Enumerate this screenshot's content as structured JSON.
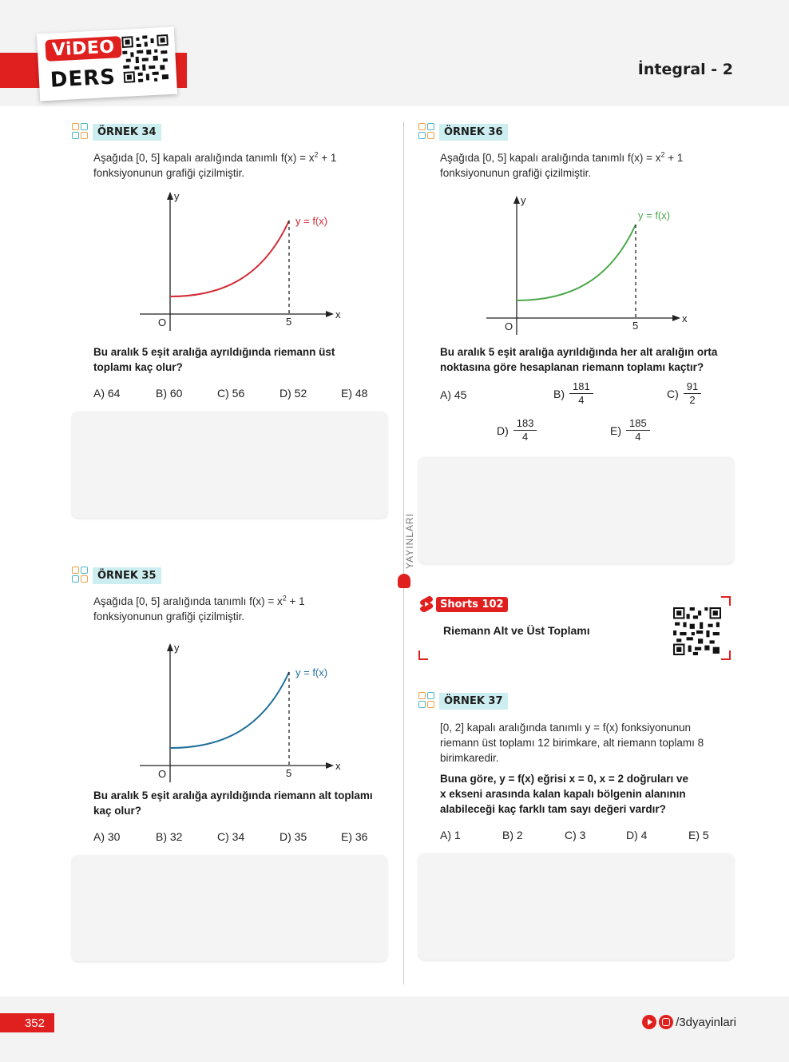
{
  "header": {
    "video_badge": "ViDEO",
    "ders_label": "DERS",
    "section_title": "İntegral - 2"
  },
  "brand_vertical": "YAYINLARI",
  "footer": {
    "page_number": "352",
    "social_handle": "/3dyayinlari"
  },
  "graph_labels": {
    "y_axis": "y",
    "x_axis": "x",
    "origin": "O",
    "x_mark": "5",
    "curve": "y = f(x)"
  },
  "colors": {
    "accent_red": "#e0201f",
    "tag_bg": "#cdeef0",
    "curve_34": "#d42a35",
    "curve_35": "#1f6f9a",
    "curve_36": "#4aa84a"
  },
  "q34": {
    "tag": "ÖRNEK 34",
    "intro_line1": "Aşağıda [0, 5] kapalı aralığında tanımlı f(x) = x",
    "intro_sup": "2",
    "intro_tail": " + 1",
    "intro_line2": "fonksiyonunun grafiği çizilmiştir.",
    "question_line1": "Bu aralık 5 eşit aralığa ayrıldığında riemann üst",
    "question_line2": "toplamı kaç olur?",
    "options": [
      "A) 64",
      "B) 60",
      "C) 56",
      "D) 52",
      "E) 48"
    ]
  },
  "q35": {
    "tag": "ÖRNEK 35",
    "intro_line1": "Aşağıda [0, 5] aralığında tanımlı f(x) = x",
    "intro_sup": "2",
    "intro_tail": " + 1",
    "intro_line2": "fonksiyonunun grafiği çizilmiştir.",
    "question_line1": "Bu aralık 5 eşit aralığa ayrıldığında riemann alt toplamı",
    "question_line2": "kaç olur?",
    "options": [
      "A) 30",
      "B) 32",
      "C) 34",
      "D) 35",
      "E) 36"
    ]
  },
  "q36": {
    "tag": "ÖRNEK 36",
    "intro_line1": "Aşağıda [0, 5] kapalı aralığında tanımlı f(x) = x",
    "intro_sup": "2",
    "intro_tail": " + 1",
    "intro_line2": "fonksiyonunun grafiği çizilmiştir.",
    "question_line1": "Bu aralık 5 eşit aralığa ayrıldığında her alt aralığın orta",
    "question_line2": "noktasına göre hesaplanan riemann toplamı kaçtır?",
    "option_a": "A) 45",
    "option_b": {
      "letter": "B)",
      "num": "181",
      "den": "4"
    },
    "option_c": {
      "letter": "C)",
      "num": "91",
      "den": "2"
    },
    "option_d": {
      "letter": "D)",
      "num": "183",
      "den": "4"
    },
    "option_e": {
      "letter": "E)",
      "num": "185",
      "den": "4"
    }
  },
  "shorts": {
    "badge": "Shorts 102",
    "title": "Riemann Alt ve Üst Toplamı"
  },
  "q37": {
    "tag": "ÖRNEK 37",
    "intro_line1": "[0, 2] kapalı aralığında tanımlı y = f(x) fonksiyonunun",
    "intro_line2": "riemann üst toplamı 12 birimkare, alt riemann toplamı 8",
    "intro_line3": "birimkaredir.",
    "question_line1": "Buna göre, y = f(x) eğrisi x = 0, x = 2 doğruları ve",
    "question_line2": "x ekseni arasında kalan kapalı bölgenin alanının",
    "question_line3": "alabileceği kaç farklı tam sayı değeri vardır?",
    "options": [
      "A) 1",
      "B) 2",
      "C) 3",
      "D) 4",
      "E) 5"
    ]
  }
}
